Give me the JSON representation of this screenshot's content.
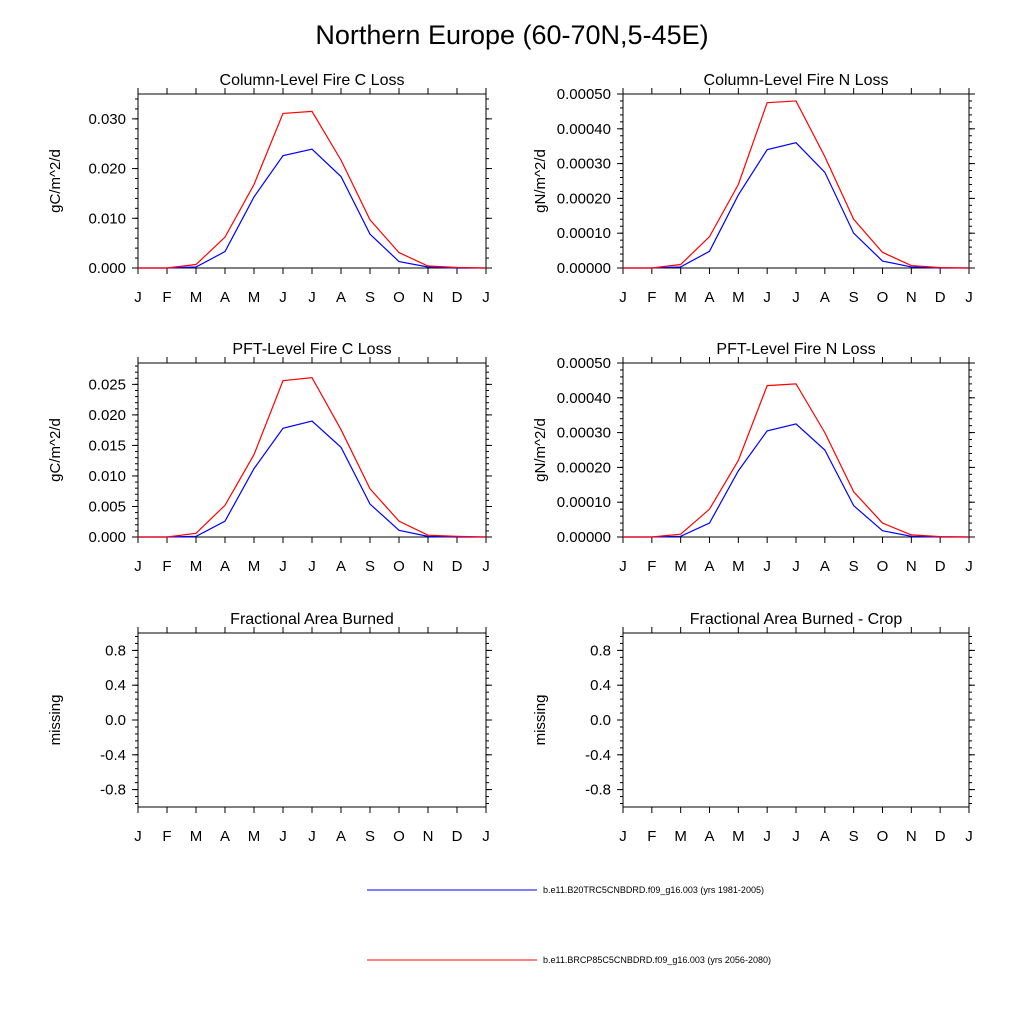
{
  "figure_title": "Northern Europe (60-70N,5-45E)",
  "legend": [
    {
      "label": "b.e11.B20TRC5CNBDRD.f09_g16.003 (yrs 1981-2005)",
      "color": "#0000ff"
    },
    {
      "label": "b.e11.BRCP85C5CNBDRD.f09_g16.003 (yrs 2056-2080)",
      "color": "#ff0000"
    }
  ],
  "chart_data": [
    {
      "type": "line",
      "title": "Column-Level Fire C Loss",
      "xlabel": "",
      "ylabel": "gC/m^2/d",
      "x_tick_labels": [
        "J",
        "F",
        "M",
        "A",
        "M",
        "J",
        "J",
        "A",
        "S",
        "O",
        "N",
        "D",
        "J"
      ],
      "y_ticks": [
        "0.000",
        "0.010",
        "0.020",
        "0.030"
      ],
      "y_tick_values": [
        0,
        0.01,
        0.02,
        0.03
      ],
      "ylim": [
        0,
        0.035
      ],
      "xlim": [
        0,
        12
      ],
      "series": [
        {
          "name": "b.e11.B20TRC5CNBDRD.f09_g16.003 (yrs 1981-2005)",
          "color": "#0000ff",
          "x": [
            0,
            1,
            2,
            3,
            4,
            5,
            6,
            7,
            8,
            9,
            10,
            11,
            12
          ],
          "values": [
            0,
            0,
            0.0002,
            0.0033,
            0.0143,
            0.0226,
            0.0239,
            0.0184,
            0.0068,
            0.0013,
            0.0002,
            0,
            0
          ]
        },
        {
          "name": "b.e11.BRCP85C5CNBDRD.f09_g16.003 (yrs 2056-2080)",
          "color": "#ff0000",
          "x": [
            0,
            1,
            2,
            3,
            4,
            5,
            6,
            7,
            8,
            9,
            10,
            11,
            12
          ],
          "values": [
            0,
            0,
            0.0007,
            0.0062,
            0.0168,
            0.0311,
            0.0315,
            0.0217,
            0.0097,
            0.0031,
            0.0004,
            0.0001,
            0
          ]
        }
      ]
    },
    {
      "type": "line",
      "title": "Column-Level Fire N Loss",
      "xlabel": "",
      "ylabel": "gN/m^2/d",
      "x_tick_labels": [
        "J",
        "F",
        "M",
        "A",
        "M",
        "J",
        "J",
        "A",
        "S",
        "O",
        "N",
        "D",
        "J"
      ],
      "y_ticks": [
        "0.00000",
        "0.00010",
        "0.00020",
        "0.00030",
        "0.00040",
        "0.00050"
      ],
      "y_tick_values": [
        0,
        0.0001,
        0.0002,
        0.0003,
        0.0004,
        0.0005
      ],
      "ylim": [
        0,
        0.0005
      ],
      "xlim": [
        0,
        12
      ],
      "series": [
        {
          "name": "b.e11.B20TRC5CNBDRD.f09_g16.003 (yrs 1981-2005)",
          "color": "#0000ff",
          "x": [
            0,
            1,
            2,
            3,
            4,
            5,
            6,
            7,
            8,
            9,
            10,
            11,
            12
          ],
          "values": [
            0,
            0,
            3e-06,
            4.8e-05,
            0.00021,
            0.00034,
            0.00036,
            0.000275,
            0.0001,
            2e-05,
            3e-06,
            0,
            0
          ]
        },
        {
          "name": "b.e11.BRCP85C5CNBDRD.f09_g16.003 (yrs 2056-2080)",
          "color": "#ff0000",
          "x": [
            0,
            1,
            2,
            3,
            4,
            5,
            6,
            7,
            8,
            9,
            10,
            11,
            12
          ],
          "values": [
            0,
            0,
            1e-05,
            9e-05,
            0.00024,
            0.000475,
            0.00048,
            0.00032,
            0.00014,
            4.5e-05,
            7e-06,
            1e-06,
            0
          ]
        }
      ]
    },
    {
      "type": "line",
      "title": "PFT-Level Fire C Loss",
      "xlabel": "",
      "ylabel": "gC/m^2/d",
      "x_tick_labels": [
        "J",
        "F",
        "M",
        "A",
        "M",
        "J",
        "J",
        "A",
        "S",
        "O",
        "N",
        "D",
        "J"
      ],
      "y_ticks": [
        "0.000",
        "0.005",
        "0.010",
        "0.015",
        "0.020",
        "0.025"
      ],
      "y_tick_values": [
        0,
        0.005,
        0.01,
        0.015,
        0.02,
        0.025
      ],
      "ylim": [
        0,
        0.0285
      ],
      "xlim": [
        0,
        12
      ],
      "series": [
        {
          "name": "b.e11.B20TRC5CNBDRD.f09_g16.003 (yrs 1981-2005)",
          "color": "#0000ff",
          "x": [
            0,
            1,
            2,
            3,
            4,
            5,
            6,
            7,
            8,
            9,
            10,
            11,
            12
          ],
          "values": [
            0,
            0,
            0.0001,
            0.0026,
            0.0112,
            0.0178,
            0.019,
            0.0147,
            0.0054,
            0.0011,
            0.0001,
            0,
            0
          ]
        },
        {
          "name": "b.e11.BRCP85C5CNBDRD.f09_g16.003 (yrs 2056-2080)",
          "color": "#ff0000",
          "x": [
            0,
            1,
            2,
            3,
            4,
            5,
            6,
            7,
            8,
            9,
            10,
            11,
            12
          ],
          "values": [
            0,
            0,
            0.0006,
            0.0052,
            0.0135,
            0.0256,
            0.0261,
            0.0176,
            0.0079,
            0.0026,
            0.0003,
            0.0001,
            0
          ]
        }
      ]
    },
    {
      "type": "line",
      "title": "PFT-Level Fire N Loss",
      "xlabel": "",
      "ylabel": "gN/m^2/d",
      "x_tick_labels": [
        "J",
        "F",
        "M",
        "A",
        "M",
        "J",
        "J",
        "A",
        "S",
        "O",
        "N",
        "D",
        "J"
      ],
      "y_ticks": [
        "0.00000",
        "0.00010",
        "0.00020",
        "0.00030",
        "0.00040",
        "0.00050"
      ],
      "y_tick_values": [
        0,
        0.0001,
        0.0002,
        0.0003,
        0.0004,
        0.0005
      ],
      "ylim": [
        0,
        0.0005
      ],
      "xlim": [
        0,
        12
      ],
      "series": [
        {
          "name": "b.e11.B20TRC5CNBDRD.f09_g16.003 (yrs 1981-2005)",
          "color": "#0000ff",
          "x": [
            0,
            1,
            2,
            3,
            4,
            5,
            6,
            7,
            8,
            9,
            10,
            11,
            12
          ],
          "values": [
            0,
            0,
            2e-06,
            4e-05,
            0.00019,
            0.000305,
            0.000325,
            0.00025,
            9e-05,
            1.8e-05,
            2e-06,
            0,
            0
          ]
        },
        {
          "name": "b.e11.BRCP85C5CNBDRD.f09_g16.003 (yrs 2056-2080)",
          "color": "#ff0000",
          "x": [
            0,
            1,
            2,
            3,
            4,
            5,
            6,
            7,
            8,
            9,
            10,
            11,
            12
          ],
          "values": [
            0,
            0,
            8e-06,
            8e-05,
            0.00022,
            0.000435,
            0.00044,
            0.0003,
            0.00013,
            4e-05,
            6e-06,
            1e-06,
            0
          ]
        }
      ]
    },
    {
      "type": "line",
      "title": "Fractional Area Burned",
      "xlabel": "",
      "ylabel": "missing",
      "x_tick_labels": [
        "J",
        "F",
        "M",
        "A",
        "M",
        "J",
        "J",
        "A",
        "S",
        "O",
        "N",
        "D",
        "J"
      ],
      "y_ticks": [
        "0.8",
        "0.4",
        "0.0",
        "-0.4",
        "-0.8"
      ],
      "y_tick_values": [
        0.8,
        0.4,
        0,
        -0.4,
        -0.8
      ],
      "ylim": [
        -1,
        1
      ],
      "xlim": [
        0,
        12
      ],
      "series": []
    },
    {
      "type": "line",
      "title": "Fractional Area Burned - Crop",
      "xlabel": "",
      "ylabel": "missing",
      "x_tick_labels": [
        "J",
        "F",
        "M",
        "A",
        "M",
        "J",
        "J",
        "A",
        "S",
        "O",
        "N",
        "D",
        "J"
      ],
      "y_ticks": [
        "0.8",
        "0.4",
        "0.0",
        "-0.4",
        "-0.8"
      ],
      "y_tick_values": [
        0.8,
        0.4,
        0,
        -0.4,
        -0.8
      ],
      "ylim": [
        -1,
        1
      ],
      "xlim": [
        0,
        12
      ],
      "series": []
    }
  ]
}
